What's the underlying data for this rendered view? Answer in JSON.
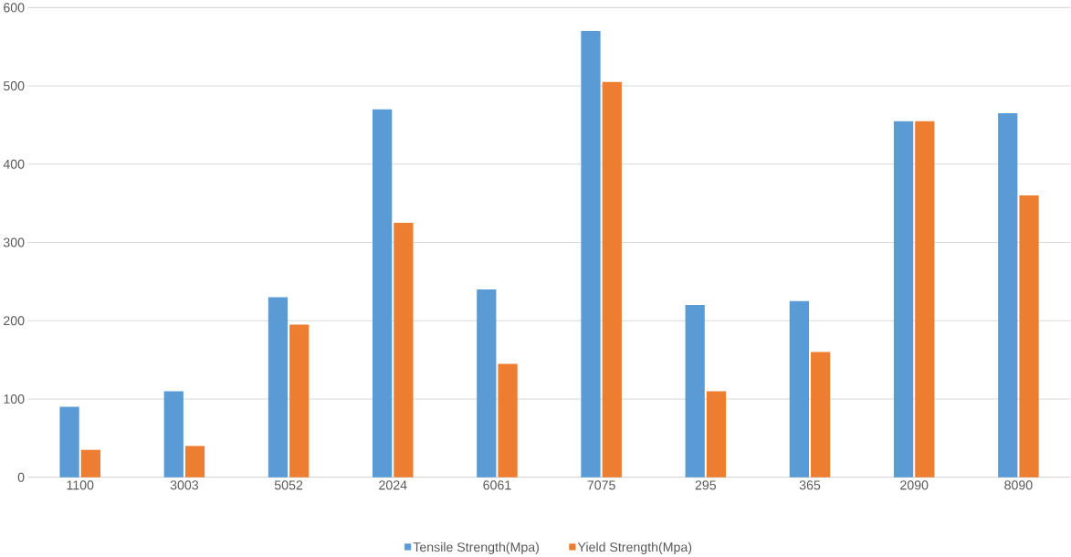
{
  "chart_data": {
    "type": "bar",
    "categories": [
      "1100",
      "3003",
      "5052",
      "2024",
      "6061",
      "7075",
      "295",
      "365",
      "2090",
      "8090"
    ],
    "series": [
      {
        "name": "Tensile Strength(Mpa)",
        "color": "#5b9bd5",
        "values": [
          90,
          110,
          230,
          470,
          240,
          570,
          220,
          225,
          455,
          465
        ]
      },
      {
        "name": "Yield Strength(Mpa)",
        "color": "#ed7d31",
        "values": [
          35,
          40,
          195,
          325,
          145,
          505,
          110,
          160,
          455,
          360
        ]
      }
    ],
    "ylim": [
      0,
      600
    ],
    "yticks": [
      0,
      100,
      200,
      300,
      400,
      500,
      600
    ],
    "grid": "y",
    "legend": "bottom"
  }
}
